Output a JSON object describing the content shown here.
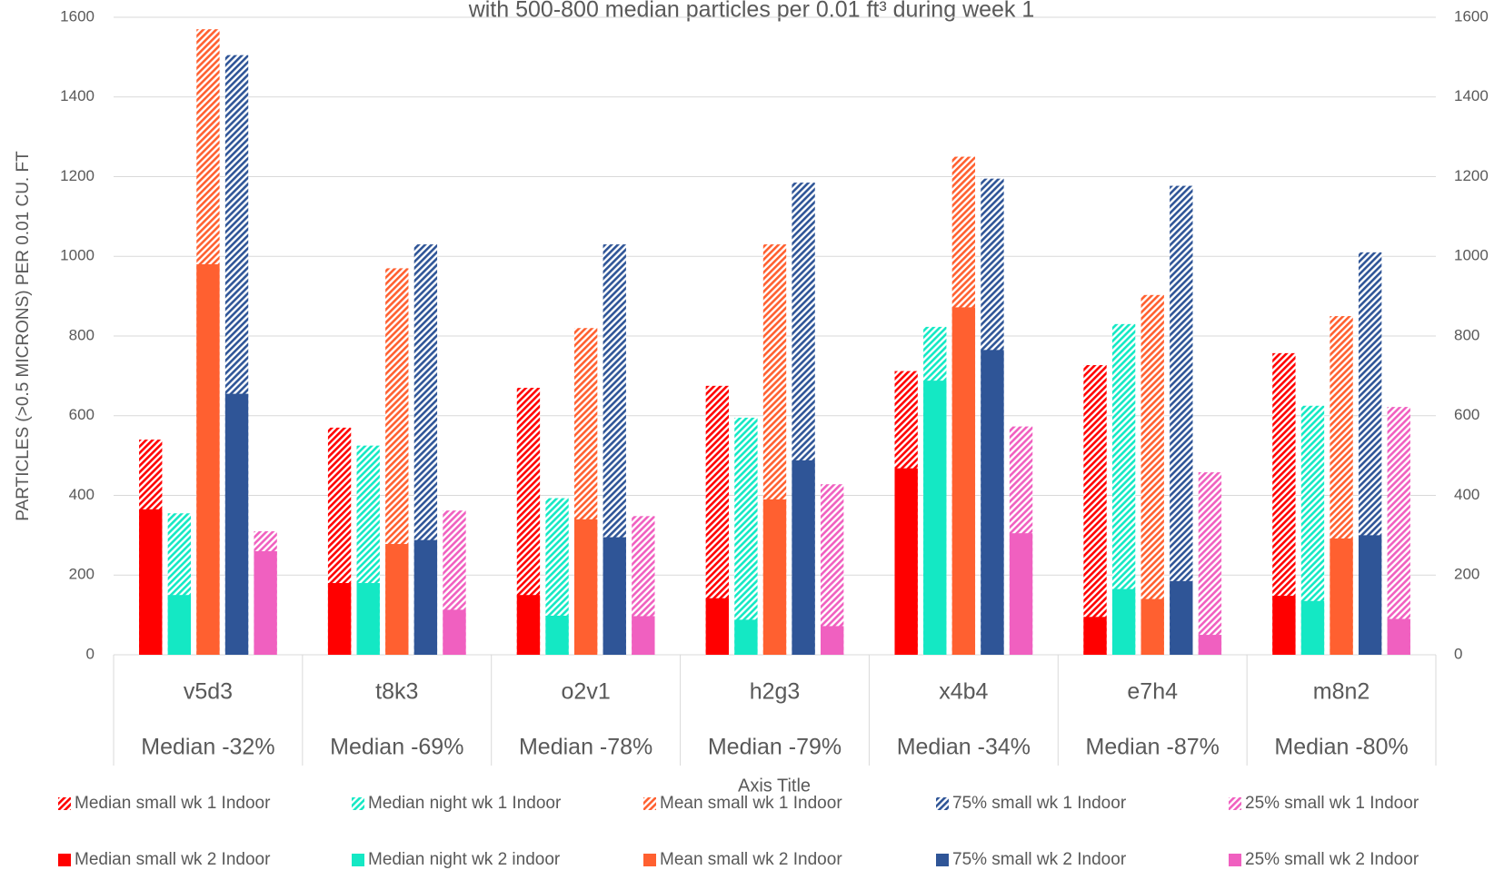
{
  "chart_data": {
    "type": "bar",
    "title": "with 500-800 median particles per 0.01 ft³ during week 1",
    "y_label": "PARTICLES (>0.5 MICRONS)  PER 0.01 CU. FT",
    "x_label": "Axis Title",
    "categories": [
      "v5d3",
      "t8k3",
      "o2v1",
      "h2g3",
      "x4b4",
      "e7h4",
      "m8n2"
    ],
    "category_notes": [
      "Median -32%",
      "Median -69%",
      "Median -78%",
      "Median -79%",
      "Median -34%",
      "Median -87%",
      "Median -80%"
    ],
    "series": [
      {
        "name": "Median small wk 1 Indoor",
        "color": "#ff0000",
        "hatched": true,
        "values": [
          540,
          570,
          670,
          675,
          712,
          727,
          757
        ]
      },
      {
        "name": "Median night wk 1 Indoor",
        "color": "#14e8c4",
        "hatched": true,
        "values": [
          355,
          525,
          393,
          595,
          823,
          830,
          625
        ]
      },
      {
        "name": "Mean small wk 1 Indoor",
        "color": "#ff6030",
        "hatched": true,
        "values": [
          1570,
          970,
          820,
          1030,
          1250,
          903,
          850
        ]
      },
      {
        "name": "75% small wk 1 Indoor",
        "color": "#2f5597",
        "hatched": true,
        "values": [
          1505,
          1030,
          1030,
          1185,
          1195,
          1177,
          1010
        ]
      },
      {
        "name": "25% small wk 1 Indoor",
        "color": "#f060c0",
        "hatched": true,
        "values": [
          310,
          362,
          348,
          428,
          573,
          458,
          622
        ]
      },
      {
        "name": "Median small wk 2 Indoor",
        "color": "#ff0000",
        "hatched": false,
        "values": [
          365,
          180,
          150,
          142,
          468,
          95,
          148
        ]
      },
      {
        "name": "Median night wk 2 indoor",
        "color": "#14e8c4",
        "hatched": false,
        "values": [
          150,
          180,
          98,
          88,
          688,
          165,
          135
        ]
      },
      {
        "name": "Mean small wk 2 Indoor",
        "color": "#ff6030",
        "hatched": false,
        "values": [
          980,
          278,
          340,
          390,
          872,
          140,
          292
        ]
      },
      {
        "name": "75% small wk 2 Indoor",
        "color": "#2f5597",
        "hatched": false,
        "values": [
          655,
          288,
          295,
          488,
          765,
          185,
          300
        ]
      },
      {
        "name": "25% small wk 2 Indoor",
        "color": "#f060c0",
        "hatched": false,
        "values": [
          260,
          113,
          97,
          72,
          305,
          50,
          90
        ]
      }
    ],
    "ylim": [
      0,
      1600
    ],
    "yticks": [
      0,
      200,
      400,
      600,
      800,
      1000,
      1200,
      1400,
      1600
    ],
    "y2lim": [
      0,
      1600
    ],
    "y2ticks": [
      0,
      200,
      400,
      600,
      800,
      1000,
      1200,
      1400,
      1600
    ],
    "grid": true
  }
}
